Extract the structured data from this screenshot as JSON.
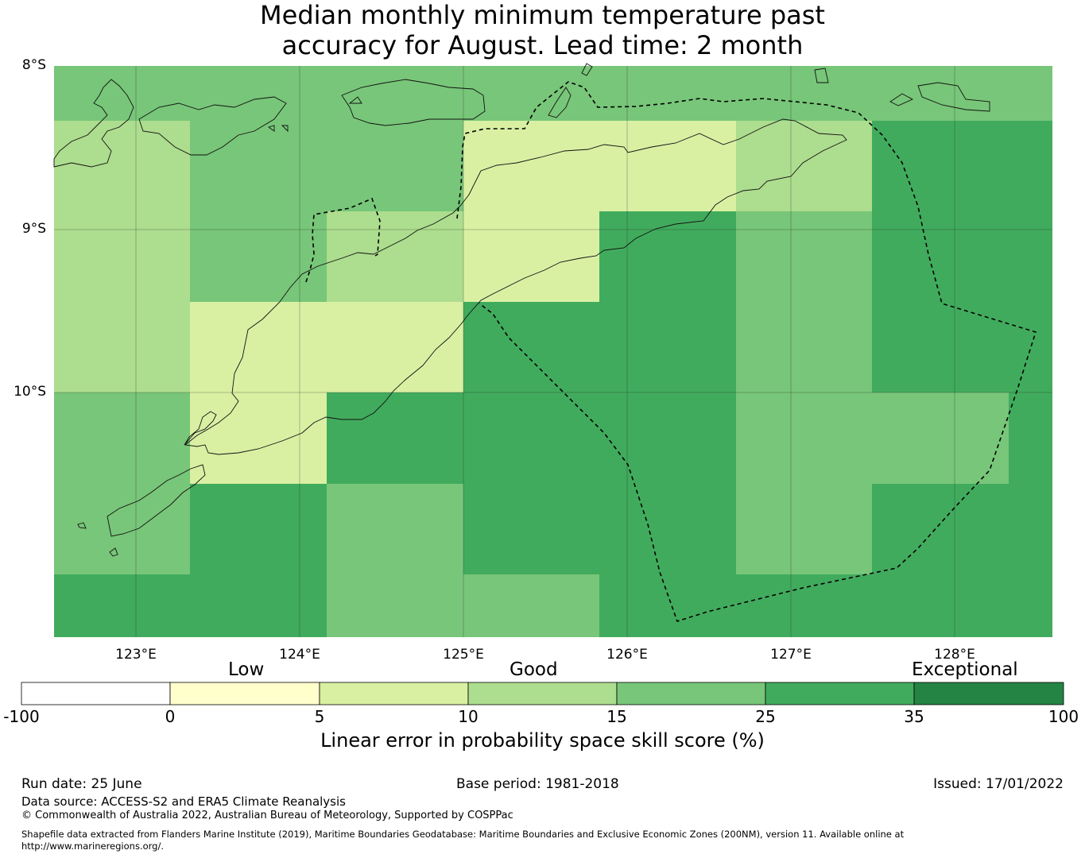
{
  "title_line1": "Median monthly minimum temperature past",
  "title_line2": "accuracy for August. Lead time: 2 month",
  "lat_labels": [
    "8°S",
    "9°S",
    "10°S"
  ],
  "lon_labels": [
    "123°E",
    "124°E",
    "125°E",
    "126°E",
    "127°E",
    "128°E"
  ],
  "categories": [
    "Low",
    "Good",
    "Exceptional"
  ],
  "colorbar": {
    "ticks": [
      "-100",
      "0",
      "5",
      "10",
      "15",
      "25",
      "35",
      "100"
    ],
    "colors": [
      "#ffffff",
      "#ffffcc",
      "#d9f0a3",
      "#addd8e",
      "#78c679",
      "#41ab5d",
      "#238443"
    ],
    "label": "Linear error in probability space skill score (%)"
  },
  "legend_colors": {
    "c1": "#ffffcc",
    "c2": "#d9f0a3",
    "c3": "#addd8e",
    "c4": "#78c679",
    "c5": "#41ab5d",
    "c6": "#238443"
  },
  "grid": {
    "rows": [
      [
        "c4",
        "c4",
        "c4",
        "c4",
        "c4",
        "c4",
        "c4"
      ],
      [
        "c3",
        "c4",
        "c4",
        "c2",
        "c2",
        "c3",
        "c5"
      ],
      [
        "c3",
        "c4",
        "c3",
        "c2",
        "c5",
        "c4",
        "c5"
      ],
      [
        "c3",
        "c2",
        "c2",
        "c5",
        "c5",
        "c4",
        "c5"
      ],
      [
        "c4",
        "c2",
        "c5",
        "c5",
        "c5",
        "c4",
        "c4"
      ],
      [
        "c4",
        "c5",
        "c4",
        "c5",
        "c5",
        "c4",
        "c5"
      ],
      [
        "c5",
        "c5",
        "c4",
        "c4",
        "c5",
        "c5",
        "c5"
      ]
    ]
  },
  "footer": {
    "run_date": "Run date: 25 June",
    "base_period": "Base period: 1981-2018",
    "issued": "Issued: 17/01/2022",
    "data_source": "Data source: ACCESS-S2 and ERA5 Climate Reanalysis",
    "copyright": "© Commonwealth of Australia 2022, Australian Bureau of Meteorology, Supported by COSPPac",
    "shapefile_line1": "Shapefile data extracted from Flanders Marine Institute (2019), Maritime Boundaries Geodatabase: Maritime Boundaries and Exclusive Economic Zones (200NM), version 11. Available online at",
    "shapefile_line2": "http://www.marineregions.org/."
  }
}
